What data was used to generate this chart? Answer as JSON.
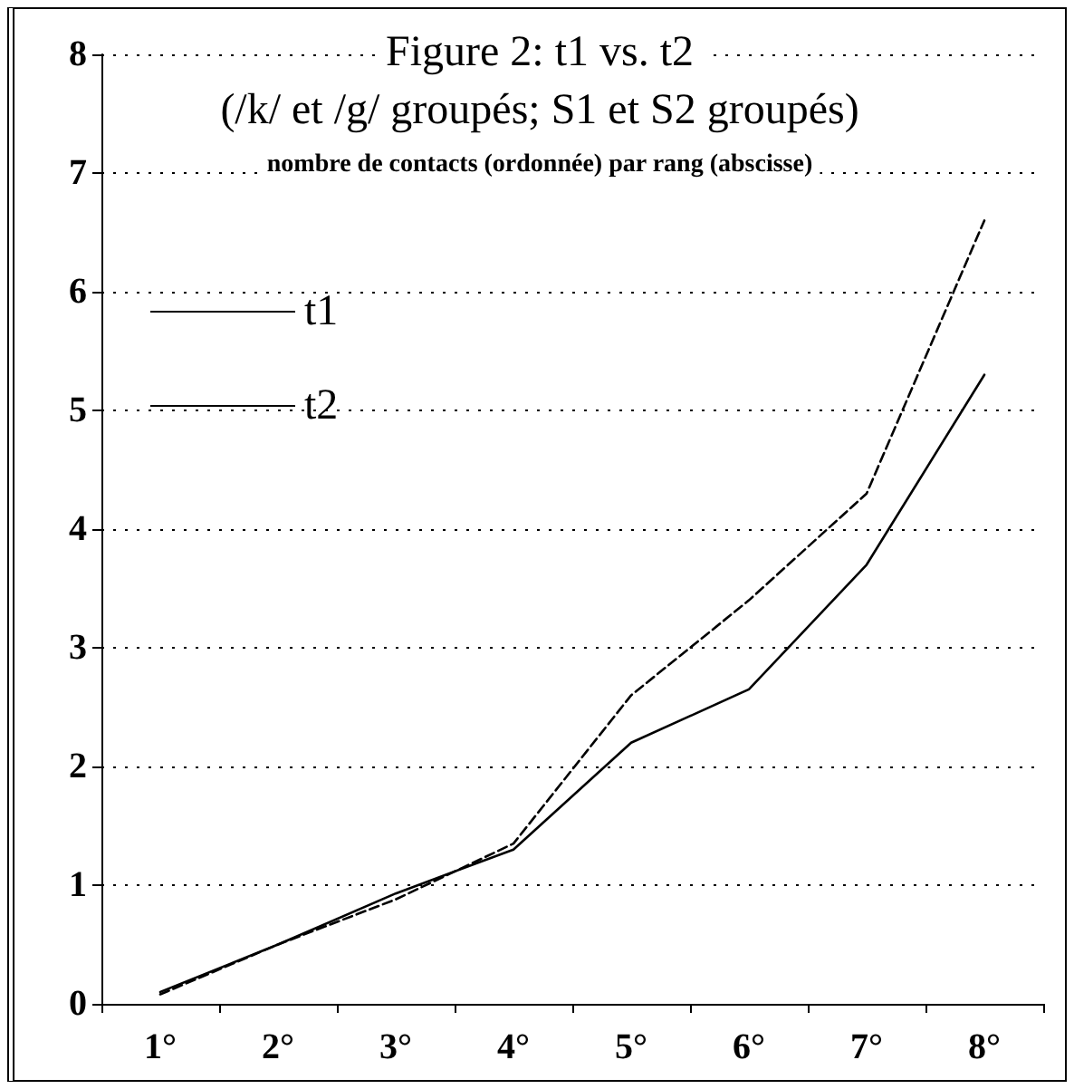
{
  "chart_data": {
    "type": "line",
    "title": "Figure 2: t1 vs. t2",
    "subtitle": "(/k/ et /g/ groupés; S1 et S2 groupés)",
    "annotations": [
      "nombre de contacts (ordonnée) par rang (abscisse)"
    ],
    "categories": [
      "1°",
      "2°",
      "3°",
      "4°",
      "5°",
      "6°",
      "7°",
      "8°"
    ],
    "series": [
      {
        "name": "t1",
        "color": "#000000",
        "line_style": "solid",
        "values": [
          0.1,
          0.5,
          0.93,
          1.3,
          2.2,
          2.65,
          3.7,
          5.3
        ]
      },
      {
        "name": "t2",
        "color": "#000000",
        "line_style": "dashed",
        "values": [
          0.08,
          0.5,
          0.88,
          1.35,
          2.6,
          3.4,
          4.3,
          6.6
        ]
      }
    ],
    "ylim": [
      0,
      8
    ],
    "yticks": [
      0,
      1,
      2,
      3,
      4,
      5,
      6,
      7,
      8
    ],
    "grid": "y",
    "legend": "top left",
    "marker": "none"
  }
}
